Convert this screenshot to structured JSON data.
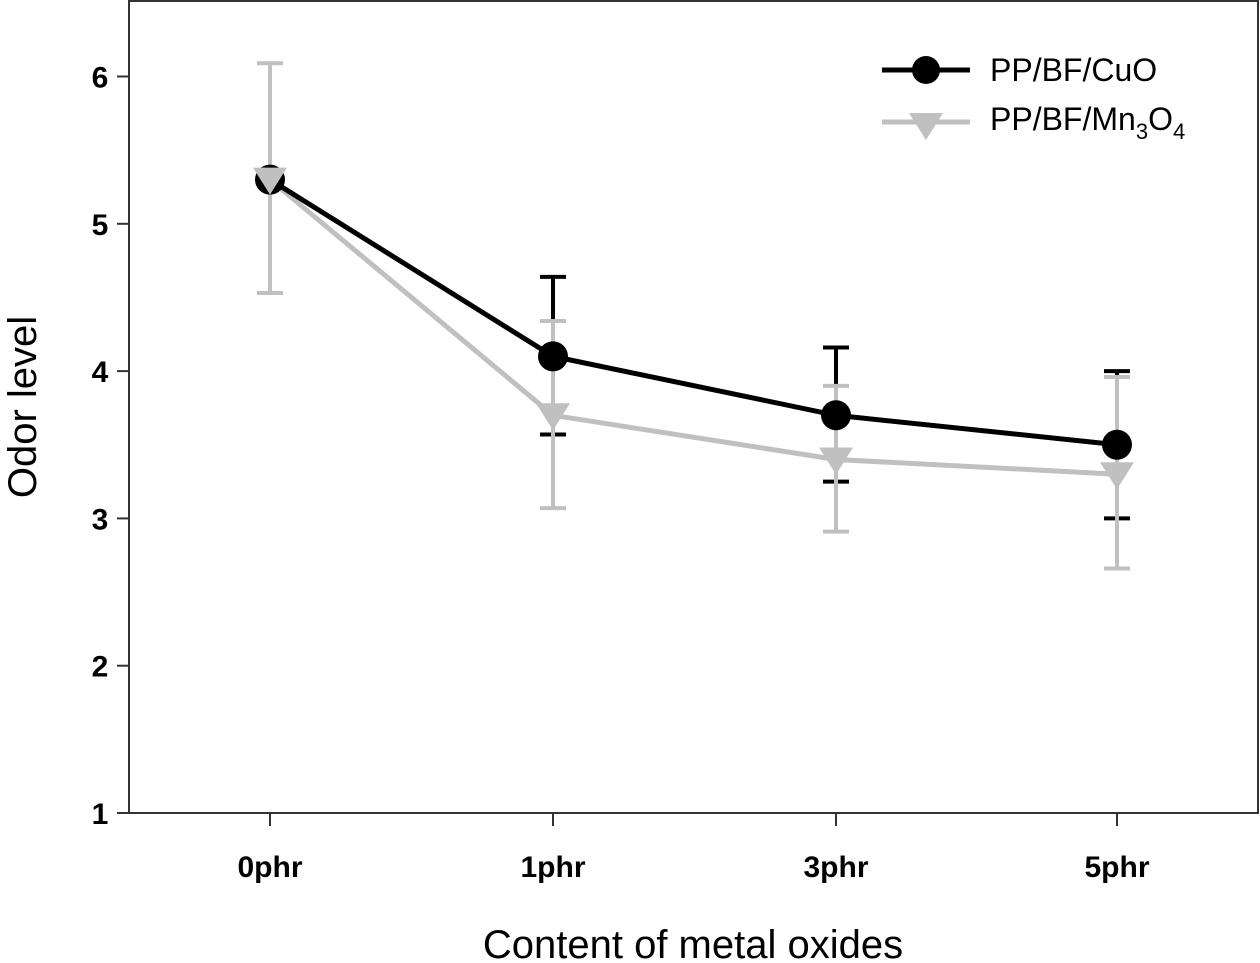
{
  "chart_data": {
    "type": "line",
    "title": "",
    "xlabel": "Content of metal oxides",
    "ylabel": "Odor level",
    "categories": [
      "0phr",
      "1phr",
      "3phr",
      "5phr"
    ],
    "ylim": [
      1,
      6.5
    ],
    "yticks": [
      1,
      2,
      3,
      4,
      5,
      6
    ],
    "grid": false,
    "legend_position": "top-right",
    "series": [
      {
        "name": "PP/BF/CuO",
        "legend_main": "PP/BF/CuO",
        "color": "#000000",
        "marker": "circle",
        "values": [
          5.3,
          4.1,
          3.7,
          3.5
        ],
        "error_upper": [
          null,
          4.64,
          4.16,
          4.0
        ],
        "error_lower": [
          null,
          3.57,
          3.25,
          3.0
        ]
      },
      {
        "name": "PP/BF/Mn3O4",
        "legend_main": "PP/BF/Mn",
        "legend_sub1": "3",
        "legend_mid": "O",
        "legend_sub2": "4",
        "color": "#c0c0c0",
        "marker": "triangle-down",
        "values": [
          5.3,
          3.7,
          3.4,
          3.3
        ],
        "error_upper": [
          6.09,
          4.34,
          3.9,
          3.96
        ],
        "error_lower": [
          4.53,
          3.07,
          2.91,
          2.66
        ]
      }
    ]
  }
}
